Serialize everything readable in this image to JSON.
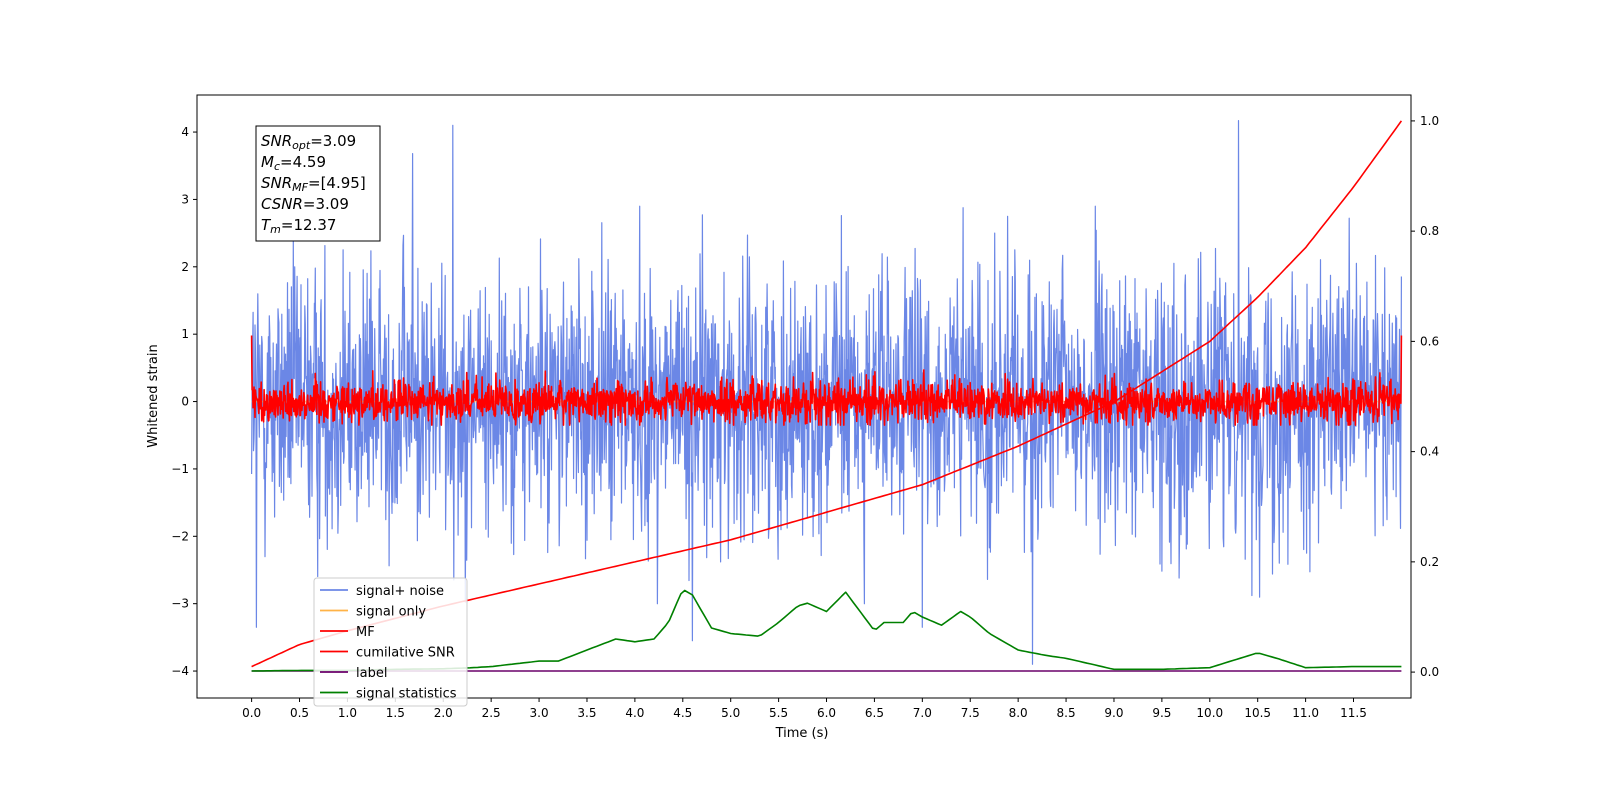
{
  "chart_data": {
    "type": "line",
    "xlabel": "Time (s)",
    "ylabel": "Whitened strain",
    "xlim": [
      -0.57,
      12.1
    ],
    "ylim": [
      -4.4,
      4.55
    ],
    "y2lim": [
      -0.047,
      1.047
    ],
    "x_ticks": [
      "0.0",
      "0.5",
      "1.0",
      "1.5",
      "2.0",
      "2.5",
      "3.0",
      "3.5",
      "4.0",
      "4.5",
      "5.0",
      "5.5",
      "6.0",
      "6.5",
      "7.0",
      "7.5",
      "8.0",
      "8.5",
      "9.0",
      "9.5",
      "10.0",
      "10.5",
      "11.0",
      "11.5"
    ],
    "y_ticks": [
      4,
      3,
      2,
      1,
      0,
      -1,
      -2,
      -3,
      -4
    ],
    "y_tick_labels": [
      "4",
      "3",
      "2",
      "1",
      "0",
      "−1",
      "−2",
      "−3",
      "−4"
    ],
    "y2_ticks": [
      "1.0",
      "0.8",
      "0.6",
      "0.4",
      "0.2",
      "0.0"
    ],
    "legend_position": "lower-left",
    "stats_box": [
      {
        "base": "SNR",
        "sub": "opt",
        "rest": "=3.09"
      },
      {
        "base": "M",
        "sub": "c",
        "rest": "=4.59"
      },
      {
        "base": "SNR",
        "sub": "MF",
        "rest": "=[4.95]"
      },
      {
        "base": "CSNR",
        "sub": "",
        "rest": "=3.09"
      },
      {
        "base": "T",
        "sub": "m",
        "rest": "=12.37"
      }
    ],
    "series": [
      {
        "name": "signal+ noise",
        "color": "#6b87e6",
        "axis": "left",
        "kind": "noise",
        "x_range": [
          0,
          12.0
        ],
        "std": 1.0,
        "spikes": [
          [
            0.05,
            -3.35
          ],
          [
            1.68,
            3.68
          ],
          [
            2.1,
            4.1
          ],
          [
            4.6,
            -3.55
          ],
          [
            7.0,
            -3.35
          ],
          [
            8.15,
            -3.9
          ],
          [
            10.3,
            4.17
          ]
        ]
      },
      {
        "name": "signal only",
        "color": "#ffb347",
        "axis": "left",
        "kind": "flat",
        "x": [
          0,
          12.0
        ],
        "values": [
          0,
          0
        ]
      },
      {
        "name": "MF",
        "color": "#ff0000",
        "axis": "left",
        "kind": "noise",
        "x_range": [
          0,
          12.0
        ],
        "std": 0.16,
        "endpoints": [
          0.98,
          0.98
        ]
      },
      {
        "name": "cumilative SNR",
        "color": "#ff0000",
        "axis": "right",
        "kind": "curve",
        "x": [
          0,
          0.5,
          1,
          2,
          3,
          4,
          5,
          6,
          7,
          8,
          9,
          10,
          10.5,
          11,
          11.5,
          12
        ],
        "values": [
          0.01,
          0.05,
          0.075,
          0.12,
          0.16,
          0.2,
          0.24,
          0.29,
          0.34,
          0.41,
          0.49,
          0.6,
          0.68,
          0.77,
          0.88,
          1.0
        ]
      },
      {
        "name": "label",
        "color": "#6a006a",
        "axis": "right",
        "kind": "flat",
        "x": [
          0,
          12.0
        ],
        "values": [
          0.002,
          0.002
        ]
      },
      {
        "name": "signal statistics",
        "color": "#008000",
        "axis": "right",
        "kind": "curve",
        "x": [
          0,
          0.5,
          1.0,
          1.5,
          2.0,
          2.3,
          2.5,
          3.0,
          3.2,
          3.5,
          3.8,
          4.0,
          4.2,
          4.35,
          4.5,
          4.6,
          4.8,
          5.0,
          5.3,
          5.5,
          5.7,
          5.8,
          6.0,
          6.2,
          6.5,
          6.6,
          6.8,
          6.9,
          7.0,
          7.2,
          7.4,
          7.5,
          7.7,
          8.0,
          8.3,
          8.5,
          9.0,
          9.5,
          10.0,
          10.5,
          10.7,
          11.0,
          11.5,
          12.0
        ],
        "values": [
          0.002,
          0.003,
          0.003,
          0.005,
          0.006,
          0.008,
          0.01,
          0.02,
          0.02,
          0.04,
          0.06,
          0.055,
          0.06,
          0.09,
          0.15,
          0.14,
          0.08,
          0.07,
          0.065,
          0.09,
          0.12,
          0.125,
          0.11,
          0.145,
          0.075,
          0.09,
          0.09,
          0.11,
          0.1,
          0.085,
          0.11,
          0.1,
          0.07,
          0.04,
          0.03,
          0.025,
          0.005,
          0.005,
          0.008,
          0.035,
          0.025,
          0.008,
          0.01,
          0.01
        ]
      }
    ]
  }
}
